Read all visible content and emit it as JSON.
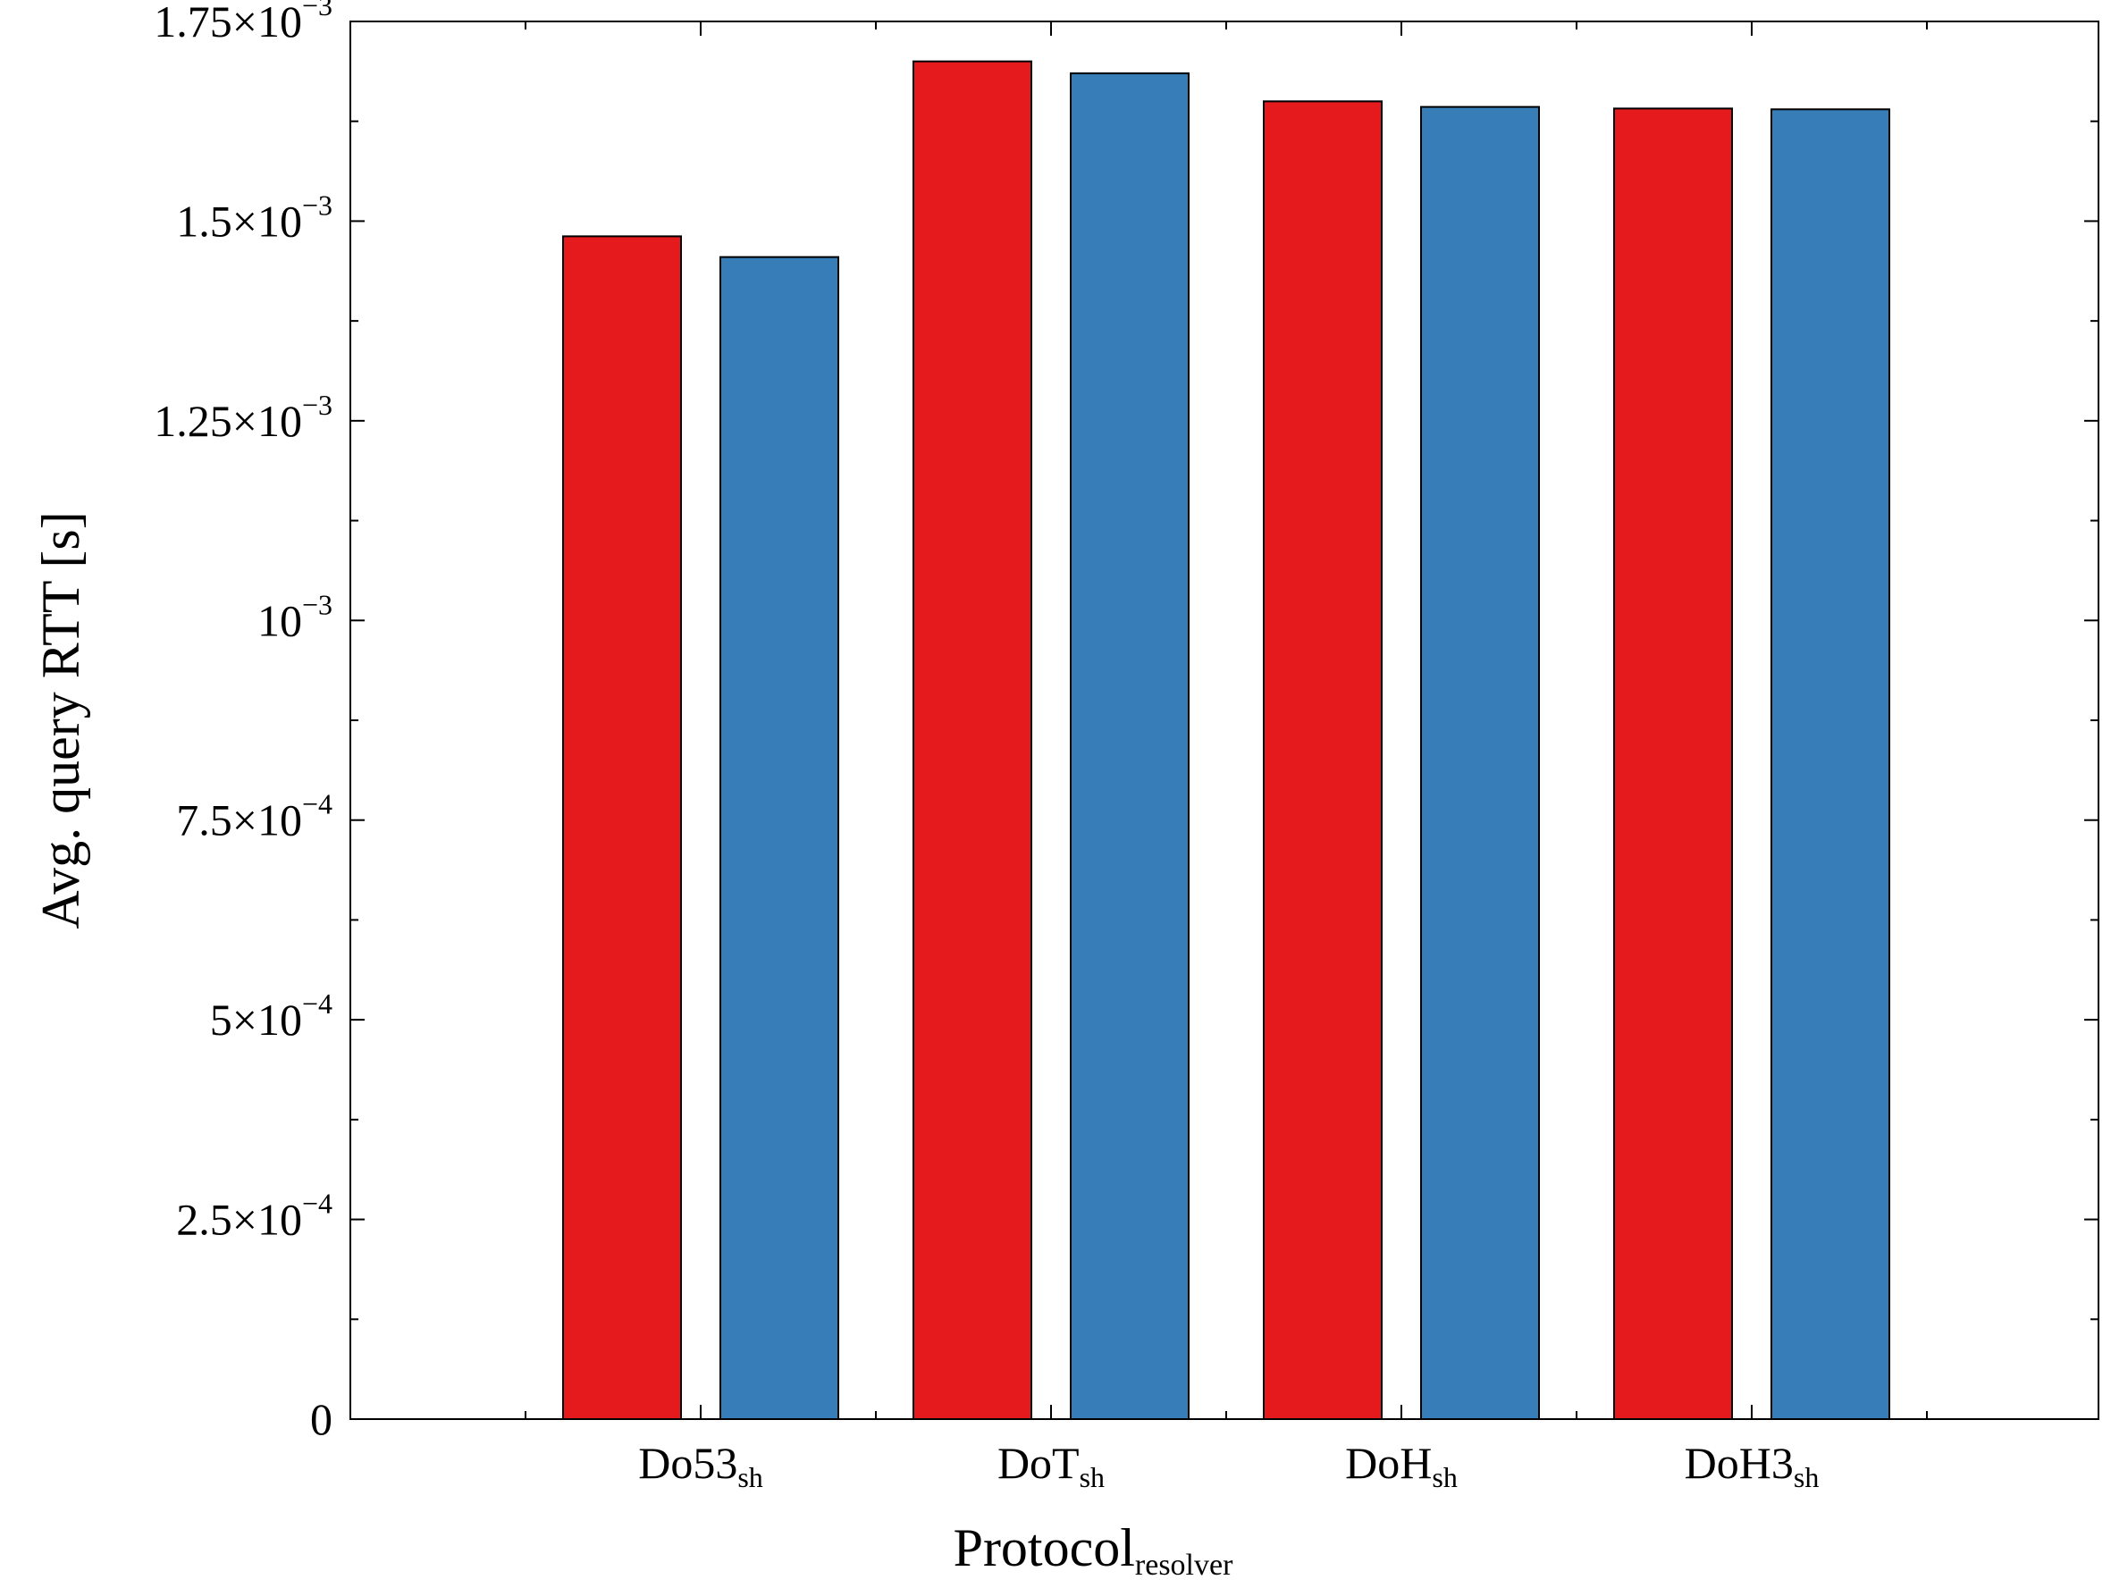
{
  "chart_data": {
    "type": "bar",
    "categories": [
      {
        "base": "Do53",
        "sub": "sh"
      },
      {
        "base": "DoT",
        "sub": "sh"
      },
      {
        "base": "DoH",
        "sub": "sh"
      },
      {
        "base": "DoH3",
        "sub": "sh"
      }
    ],
    "series": [
      {
        "color": "#e41a1c",
        "values": [
          0.001481,
          0.0017,
          0.00165,
          0.001641
        ]
      },
      {
        "color": "#377eb8",
        "values": [
          0.001455,
          0.001685,
          0.001643,
          0.00164
        ]
      }
    ],
    "ylim": [
      0,
      0.00175
    ],
    "yticks": [
      {
        "value": 0,
        "mantissa": "0",
        "exponent": ""
      },
      {
        "value": 0.00025,
        "mantissa": "2.5×10",
        "exponent": "−4"
      },
      {
        "value": 0.0005,
        "mantissa": "5×10",
        "exponent": "−4"
      },
      {
        "value": 0.00075,
        "mantissa": "7.5×10",
        "exponent": "−4"
      },
      {
        "value": 0.001,
        "mantissa": "10",
        "exponent": "−3"
      },
      {
        "value": 0.00125,
        "mantissa": "1.25×10",
        "exponent": "−3"
      },
      {
        "value": 0.0015,
        "mantissa": "1.5×10",
        "exponent": "−3"
      },
      {
        "value": 0.00175,
        "mantissa": "1.75×10",
        "exponent": "−3"
      }
    ],
    "xlabel": {
      "base": "Protocol",
      "sub": "resolver"
    },
    "ylabel": "Avg. query RTT [s]",
    "grid": false,
    "legend": "none"
  }
}
